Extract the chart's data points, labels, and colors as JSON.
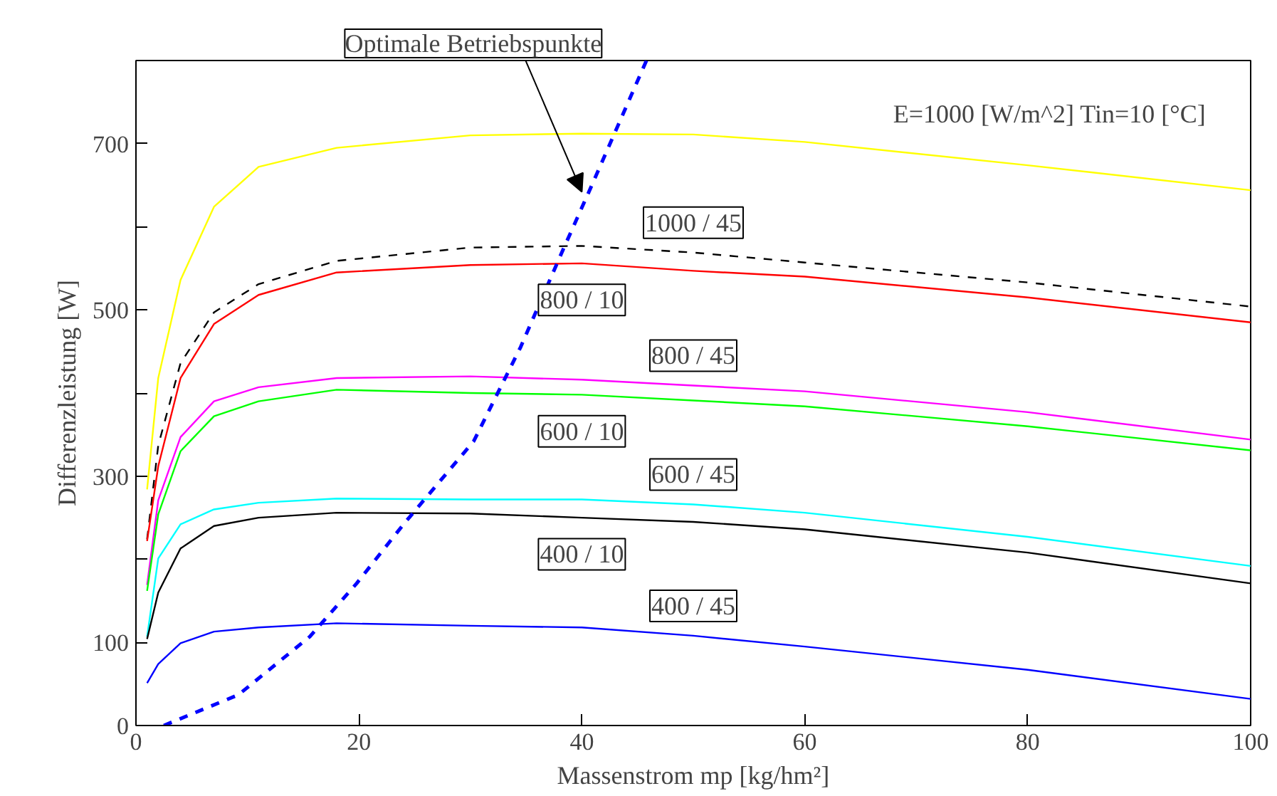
{
  "chart_data": {
    "type": "line",
    "xlabel": "Massenstrom mp [kg/hm²]",
    "ylabel": "Differenzleistung [W]",
    "xlim": [
      0,
      100
    ],
    "ylim": [
      0,
      800
    ],
    "xticks": [
      0,
      20,
      40,
      60,
      80,
      100
    ],
    "yticks": [
      0,
      100,
      {
        "value": 200,
        "label": null
      },
      300,
      {
        "value": 400,
        "label": null
      },
      500,
      {
        "value": 600,
        "label": null
      },
      700
    ],
    "grid": false,
    "x": [
      1,
      2,
      4,
      7,
      11,
      18,
      30,
      40,
      50,
      60,
      80,
      100
    ],
    "series": [
      {
        "color": "#ffff00",
        "values": [
          284,
          418,
          536,
          624,
          672,
          695,
          710,
          712,
          711,
          702,
          674,
          644
        ]
      },
      {
        "name": "1000 / 45",
        "color": "#000000",
        "line_style": "dashed",
        "values": [
          224,
          337,
          436,
          497,
          531,
          559,
          575,
          577,
          569,
          557,
          533,
          504
        ]
      },
      {
        "name": "800 / 10",
        "color": "#ff0000",
        "values": [
          222,
          312,
          418,
          483,
          518,
          545,
          554,
          556,
          547,
          540,
          515,
          485
        ]
      },
      {
        "name": "800 / 45",
        "color": "#ff00ff",
        "values": [
          169,
          271,
          347,
          390,
          407,
          418,
          420,
          416,
          409,
          402,
          377,
          344
        ]
      },
      {
        "name": "600 / 10",
        "color": "#00ff00",
        "values": [
          162,
          254,
          330,
          372,
          390,
          404,
          400,
          398,
          391,
          384,
          360,
          331
        ]
      },
      {
        "name": "600 / 45",
        "color": "#00ffff",
        "values": [
          107,
          201,
          242,
          260,
          268,
          273,
          272,
          272,
          266,
          256,
          227,
          192
        ]
      },
      {
        "name": "400 / 10",
        "color": "#000000",
        "values": [
          104,
          160,
          213,
          240,
          250,
          256,
          255,
          250,
          245,
          236,
          208,
          171
        ]
      },
      {
        "name": "400 / 45",
        "color": "#0000ff",
        "values": [
          51,
          74,
          99,
          113,
          118,
          123,
          120,
          118,
          108,
          95,
          67,
          32
        ]
      },
      {
        "color": "#0000ff",
        "line_style": "dashed",
        "x": [
          2.5,
          9.2,
          15.6,
          19.8,
          24,
          30.3,
          34.5,
          38.4,
          40.5,
          45.8
        ],
        "values": [
          0,
          37,
          107,
          171,
          242,
          342,
          455,
          575,
          638,
          800
        ]
      }
    ],
    "annotations": [
      "E=1000 [W/m^2] Tin=10 [°C]",
      {
        "text": "Optimale Betriebspunkte",
        "x": 40,
        "y": 642
      }
    ]
  }
}
